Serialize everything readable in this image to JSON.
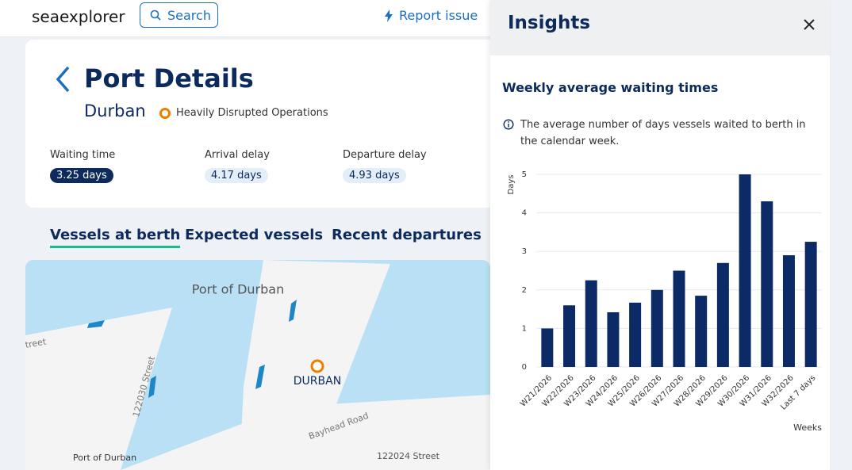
{
  "header": {
    "brand": "seaexplorer",
    "search": "Search",
    "report": "Report issue"
  },
  "port": {
    "title": "Port Details",
    "name": "Durban",
    "status": "Heavily Disrupted Operations",
    "metrics": [
      {
        "label": "Waiting time",
        "value": "3.25 days"
      },
      {
        "label": "Arrival delay",
        "value": "4.17 days"
      },
      {
        "label": "Departure delay",
        "value": "4.93 days"
      }
    ]
  },
  "tabs": [
    "Vessels at berth",
    "Expected vessels",
    "Recent departures"
  ],
  "map": {
    "labels": [
      "Port of Durban",
      "DURBAN",
      "treet",
      "122030 Street",
      "Bayhead Road",
      "Port of Durban",
      "122024 Street"
    ]
  },
  "insights": {
    "title": "Insights",
    "subtitle": "Weekly average waiting times",
    "info": "The average number of days vessels waited to berth in the calendar week."
  },
  "chart_data": {
    "type": "bar",
    "x_label": "Weeks",
    "y_label": "Days",
    "categories": [
      "W21/2026",
      "W22/2026",
      "W23/2026",
      "W24/2026",
      "W25/2026",
      "W26/2026",
      "W27/2026",
      "W28/2026",
      "W29/2026",
      "W30/2026",
      "W31/2026",
      "W32/2026",
      "Last 7 days"
    ],
    "values": [
      1.0,
      1.6,
      2.25,
      1.42,
      1.67,
      2.0,
      2.5,
      1.85,
      2.7,
      5.0,
      4.3,
      2.9,
      3.25
    ],
    "color": "#0c2a66",
    "ylim": [
      0,
      5
    ],
    "yticks": [
      0,
      1,
      2,
      3,
      4,
      5
    ],
    "grid": true
  }
}
